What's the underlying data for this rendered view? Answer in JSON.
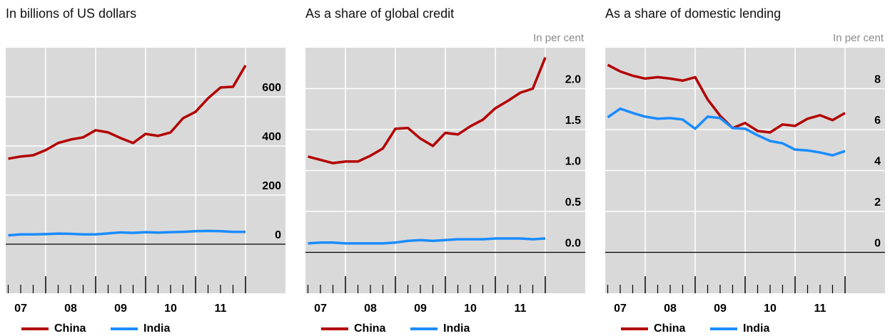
{
  "chart_data": [
    {
      "type": "line",
      "title": "In billions of US dollars",
      "x": [
        2007.25,
        2007.5,
        2007.75,
        2008.0,
        2008.25,
        2008.5,
        2008.75,
        2009.0,
        2009.25,
        2009.5,
        2009.75,
        2010.0,
        2010.25,
        2010.5,
        2010.75,
        2011.0,
        2011.25,
        2011.5,
        2011.75,
        2012.0
      ],
      "xlim": [
        2007.2,
        2012.8
      ],
      "xticks": [
        {
          "value": 2007.5,
          "label": "07"
        },
        {
          "value": 2008.5,
          "label": "08"
        },
        {
          "value": 2009.5,
          "label": "09"
        },
        {
          "value": 2010.5,
          "label": "10"
        },
        {
          "value": 2011.5,
          "label": "11"
        }
      ],
      "xgrid": [
        2008,
        2009,
        2010,
        2011,
        2012
      ],
      "xminorticks": [
        2007.25,
        2007.5,
        2007.75,
        2008.25,
        2008.5,
        2008.75,
        2009.25,
        2009.5,
        2009.75,
        2010.25,
        2010.5,
        2010.75,
        2011.25,
        2011.5,
        2011.75
      ],
      "ylim": [
        -200,
        800
      ],
      "yticks": [
        0,
        200,
        400,
        600
      ],
      "series": [
        {
          "name": "China",
          "color": "#b30000",
          "values": [
            348,
            357,
            362,
            383,
            412,
            426,
            435,
            464,
            455,
            432,
            412,
            449,
            441,
            455,
            513,
            539,
            594,
            638,
            641,
            728
          ]
        },
        {
          "name": "India",
          "color": "#1a8cff",
          "values": [
            36,
            40,
            40,
            41,
            43,
            42,
            40,
            40,
            44,
            48,
            46,
            49,
            47,
            49,
            50,
            53,
            54,
            53,
            50,
            50
          ]
        }
      ]
    },
    {
      "type": "line",
      "title": "As a share of global credit",
      "subtitle": "In per cent",
      "x": [
        2007.25,
        2007.5,
        2007.75,
        2008.0,
        2008.25,
        2008.5,
        2008.75,
        2009.0,
        2009.25,
        2009.5,
        2009.75,
        2010.0,
        2010.25,
        2010.5,
        2010.75,
        2011.0,
        2011.25,
        2011.5,
        2011.75,
        2012.0
      ],
      "xlim": [
        2007.2,
        2012.8
      ],
      "xticks": [
        {
          "value": 2007.5,
          "label": "07"
        },
        {
          "value": 2008.5,
          "label": "08"
        },
        {
          "value": 2009.5,
          "label": "09"
        },
        {
          "value": 2010.5,
          "label": "10"
        },
        {
          "value": 2011.5,
          "label": "11"
        }
      ],
      "xgrid": [
        2008,
        2009,
        2010,
        2011,
        2012
      ],
      "xminorticks": [
        2007.25,
        2007.5,
        2007.75,
        2008.25,
        2008.5,
        2008.75,
        2009.25,
        2009.5,
        2009.75,
        2010.25,
        2010.5,
        2010.75,
        2011.25,
        2011.5,
        2011.75
      ],
      "ylim": [
        -0.5,
        2.5
      ],
      "yticks": [
        {
          "value": 0,
          "label": "0.0"
        },
        0.5,
        {
          "value": 1,
          "label": "1.0"
        },
        1.5,
        {
          "value": 2,
          "label": "2.0"
        }
      ],
      "series": [
        {
          "name": "China",
          "color": "#b30000",
          "values": [
            1.17,
            1.13,
            1.09,
            1.11,
            1.11,
            1.18,
            1.27,
            1.51,
            1.52,
            1.39,
            1.3,
            1.46,
            1.44,
            1.54,
            1.62,
            1.76,
            1.85,
            1.95,
            2.0,
            2.38
          ]
        },
        {
          "name": "India",
          "color": "#1a8cff",
          "values": [
            0.11,
            0.12,
            0.12,
            0.11,
            0.11,
            0.11,
            0.11,
            0.12,
            0.14,
            0.15,
            0.14,
            0.15,
            0.16,
            0.16,
            0.16,
            0.17,
            0.17,
            0.17,
            0.16,
            0.17
          ]
        }
      ]
    },
    {
      "type": "line",
      "title": "As a share of domestic lending",
      "subtitle": "In per cent",
      "x": [
        2007.25,
        2007.5,
        2007.75,
        2008.0,
        2008.25,
        2008.5,
        2008.75,
        2009.0,
        2009.25,
        2009.5,
        2009.75,
        2010.0,
        2010.25,
        2010.5,
        2010.75,
        2011.0,
        2011.25,
        2011.5,
        2011.75,
        2012.0
      ],
      "xlim": [
        2007.2,
        2012.8
      ],
      "xticks": [
        {
          "value": 2007.5,
          "label": "07"
        },
        {
          "value": 2008.5,
          "label": "08"
        },
        {
          "value": 2009.5,
          "label": "09"
        },
        {
          "value": 2010.5,
          "label": "10"
        },
        {
          "value": 2011.5,
          "label": "11"
        }
      ],
      "xgrid": [
        2008,
        2009,
        2010,
        2011,
        2012
      ],
      "xminorticks": [
        2007.25,
        2007.5,
        2007.75,
        2008.25,
        2008.5,
        2008.75,
        2009.25,
        2009.5,
        2009.75,
        2010.25,
        2010.5,
        2010.75,
        2011.25,
        2011.5,
        2011.75
      ],
      "ylim": [
        -2,
        10
      ],
      "yticks": [
        0,
        2,
        4,
        6,
        8
      ],
      "series": [
        {
          "name": "China",
          "color": "#b30000",
          "values": [
            9.16,
            8.84,
            8.63,
            8.49,
            8.56,
            8.49,
            8.39,
            8.56,
            7.47,
            6.67,
            6.07,
            6.32,
            5.93,
            5.86,
            6.25,
            6.18,
            6.53,
            6.7,
            6.46,
            6.81
          ]
        },
        {
          "name": "India",
          "color": "#1a8cff",
          "values": [
            6.6,
            7.02,
            6.81,
            6.63,
            6.53,
            6.56,
            6.49,
            6.04,
            6.63,
            6.56,
            6.07,
            6.04,
            5.72,
            5.44,
            5.33,
            5.02,
            4.98,
            4.88,
            4.74,
            4.95
          ]
        }
      ]
    }
  ]
}
